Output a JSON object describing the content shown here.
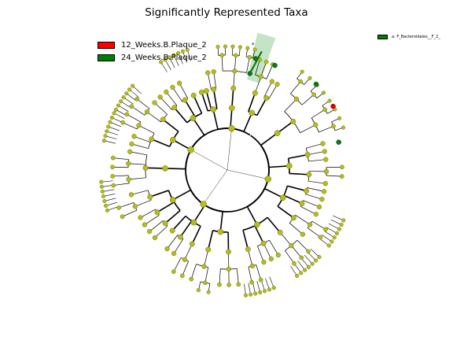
{
  "figure": {
    "title": "Significantly Represented Taxa",
    "legend": [
      {
        "label": "12_Weeks.B.Plaque_2",
        "color": "#ff0000"
      },
      {
        "label": "24_Weeks.B.Plaque_2",
        "color": "#008000"
      }
    ],
    "side_legend": {
      "label": "a: F_Bacteroidales__F_2_",
      "color": "#008000"
    },
    "clade_label": "a",
    "colors": {
      "node": "#b5bd1c",
      "node_edge": "#6e7211",
      "highlight_fill": "#9fd39f",
      "green": "#0b7a14",
      "red": "#e00000"
    }
  }
}
